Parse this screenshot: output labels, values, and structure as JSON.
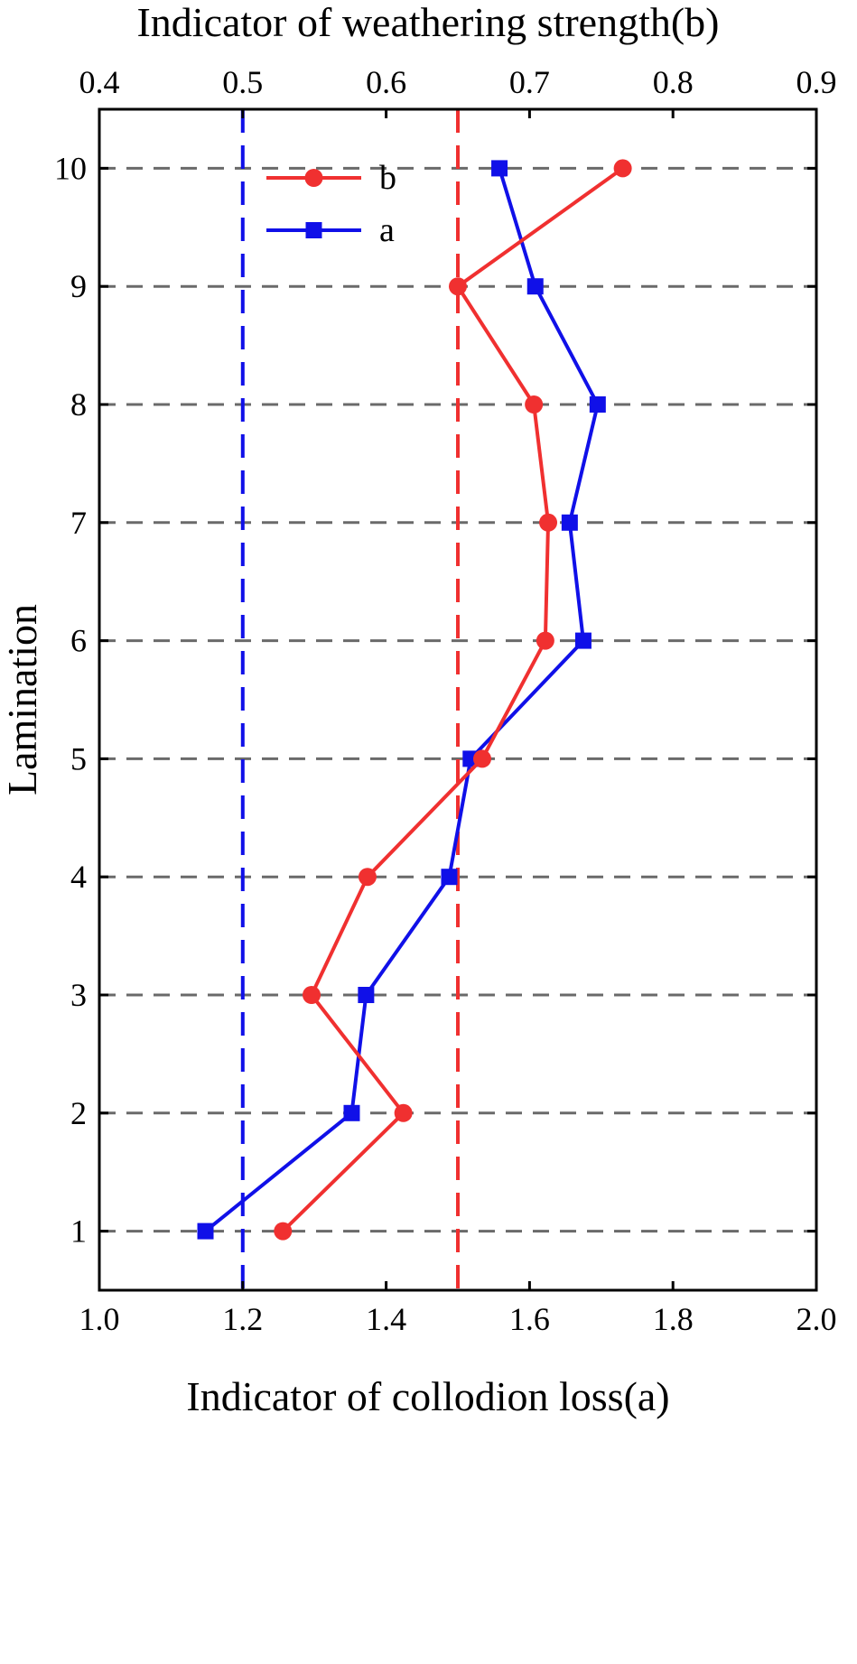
{
  "chart_data": {
    "type": "line",
    "title": "",
    "xlabel_bottom": "Indicator of collodion loss(a)",
    "xlabel_top": "Indicator of  weathering strength(b)",
    "ylabel": "Lamination",
    "xlim_bottom": [
      1.0,
      2.0
    ],
    "xlim_top": [
      0.4,
      0.9
    ],
    "ylim": [
      0.5,
      10.5
    ],
    "xticks_bottom": [
      "1.0",
      "1.2",
      "1.4",
      "1.6",
      "1.8",
      "2.0"
    ],
    "xticks_top": [
      "0.4",
      "0.5",
      "0.6",
      "0.7",
      "0.8",
      "0.9"
    ],
    "yticks": [
      "1",
      "2",
      "3",
      "4",
      "5",
      "6",
      "7",
      "8",
      "9",
      "10"
    ],
    "grid": "horizontal dashed",
    "legend_position": "top-left",
    "reference_lines": [
      {
        "axis": "bottom",
        "value": 1.2,
        "color": "#1010e8"
      },
      {
        "axis": "top",
        "value": 0.65,
        "color": "#f03030"
      }
    ],
    "series": [
      {
        "name": "b",
        "axis": "top",
        "color": "#f03030",
        "marker": "circle",
        "y": [
          1,
          2,
          3,
          4,
          5,
          6,
          7,
          8,
          9,
          10
        ],
        "x": [
          0.528,
          0.612,
          0.548,
          0.587,
          0.667,
          0.711,
          0.713,
          0.703,
          0.65,
          0.765
        ]
      },
      {
        "name": "a",
        "axis": "bottom",
        "color": "#1010e8",
        "marker": "square",
        "y": [
          1,
          2,
          3,
          4,
          5,
          6,
          7,
          8,
          9,
          10
        ],
        "x": [
          1.148,
          1.352,
          1.372,
          1.488,
          1.518,
          1.675,
          1.656,
          1.695,
          1.608,
          1.558
        ]
      }
    ]
  }
}
